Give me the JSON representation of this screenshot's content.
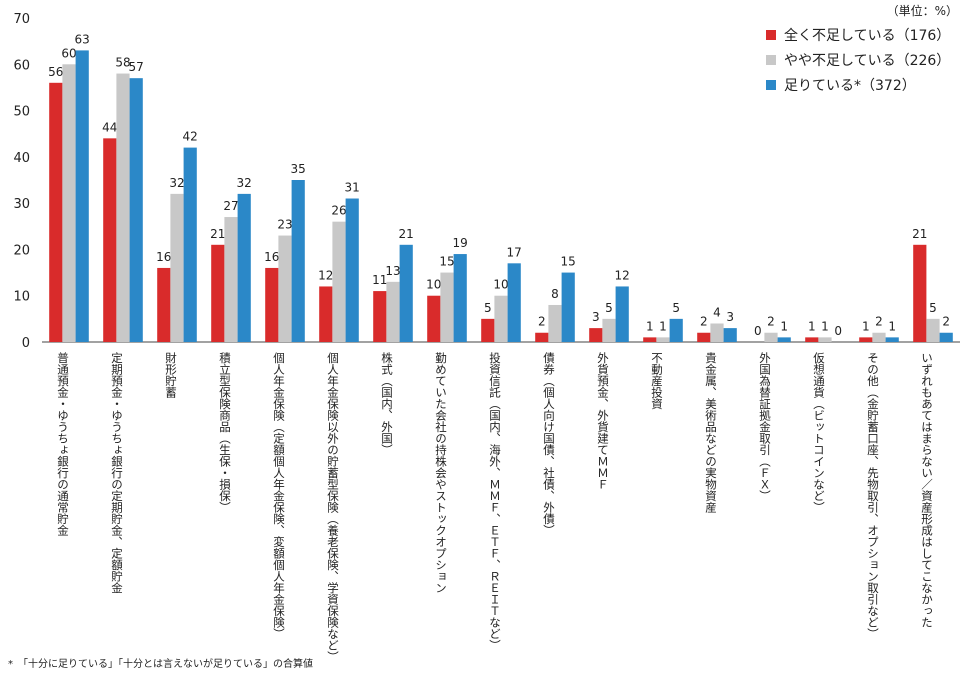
{
  "unit_note": "（単位：%）",
  "footnote": "*　「十分に足りている」「十分とは言えないが足りている」の合算値",
  "legend": [
    {
      "label": "全く不足している（176）",
      "color": "#d92b2b"
    },
    {
      "label": "やや不足している（226）",
      "color": "#c8c8c8"
    },
    {
      "label": "足りている*（372）",
      "color": "#2b88c8"
    }
  ],
  "chart_data": {
    "type": "bar",
    "title": "",
    "xlabel": "",
    "ylabel": "",
    "ylim": [
      0,
      70
    ],
    "yticks": [
      0,
      10,
      20,
      30,
      40,
      50,
      60,
      70
    ],
    "grid": false,
    "legend_position": "top-right",
    "categories": [
      "普通預金・ゆうちょ銀行の通常貯金",
      "定期預金・ゆうちょ銀行の定期貯金、定額貯金",
      "財形貯蓄",
      "積立型保険商品（生保・損保）",
      "個人年金保険（定額個人年金保険、変額個人年金保険）",
      "個人年金保険以外の貯蓄型保険（養老保険、学資保険など）",
      "株式（国内、外国）",
      "勤めていた会社の持株会やストックオプション",
      "投資信託（国内、海外、ＭＭＦ、ＥＴＦ、ＲＥＩＴなど）",
      "債券（個人向け国債、社債、外債）",
      "外貨預金、外貨建てＭＭＦ",
      "不動産投資",
      "貴金属、美術品などの実物資産",
      "外国為替証拠金取引（ＦＸ）",
      "仮想通貨（ビットコインなど）",
      "その他（金貯蓄口座、先物取引、オプション取引など）",
      "いずれもあてはまらない／資産形成はしてこなかった"
    ],
    "series": [
      {
        "name": "全く不足している（176）",
        "color": "#d92b2b",
        "values": [
          56,
          44,
          16,
          21,
          16,
          12,
          11,
          10,
          5,
          2,
          3,
          1,
          2,
          0,
          1,
          1,
          21
        ]
      },
      {
        "name": "やや不足している（226）",
        "color": "#c8c8c8",
        "values": [
          60,
          58,
          32,
          27,
          23,
          26,
          13,
          15,
          10,
          8,
          5,
          1,
          4,
          2,
          1,
          2,
          5
        ]
      },
      {
        "name": "足りている*（372）",
        "color": "#2b88c8",
        "values": [
          63,
          57,
          42,
          32,
          35,
          31,
          21,
          19,
          17,
          15,
          12,
          5,
          3,
          1,
          0,
          1,
          2
        ]
      }
    ]
  }
}
